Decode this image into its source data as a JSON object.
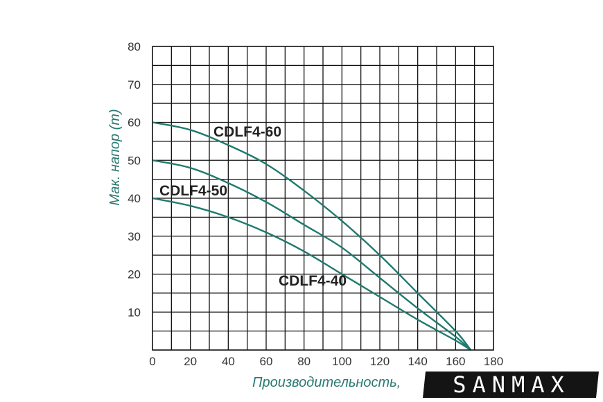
{
  "chart_data": {
    "type": "line",
    "xlabel": "Производительность,",
    "ylabel": "Мак. напор (m)",
    "xlim": [
      0,
      180
    ],
    "ylim": [
      0,
      80
    ],
    "x_ticks": [
      "0",
      "20",
      "40",
      "60",
      "80",
      "100",
      "120",
      "140",
      "160",
      "180"
    ],
    "y_ticks": [
      "10",
      "20",
      "30",
      "40",
      "50",
      "60",
      "70",
      "80"
    ],
    "grid": true,
    "line_color": "#1f7a6e",
    "series": [
      {
        "name": "CDLF4-60",
        "x": [
          0,
          20,
          40,
          60,
          80,
          100,
          120,
          140,
          160,
          168
        ],
        "y": [
          60,
          58,
          54,
          49,
          42,
          34,
          25,
          15,
          5,
          0
        ]
      },
      {
        "name": "CDLF4-50",
        "x": [
          0,
          20,
          40,
          60,
          80,
          100,
          120,
          140,
          160,
          168
        ],
        "y": [
          50,
          48,
          44,
          39,
          33,
          27,
          19,
          11,
          3.5,
          0
        ]
      },
      {
        "name": "CDLF4-40",
        "x": [
          0,
          20,
          40,
          60,
          80,
          100,
          120,
          140,
          160,
          168
        ],
        "y": [
          40,
          38,
          35,
          31,
          26,
          20,
          14,
          8,
          2.5,
          0
        ]
      }
    ]
  },
  "watermark": {
    "text": "SANMAX"
  }
}
